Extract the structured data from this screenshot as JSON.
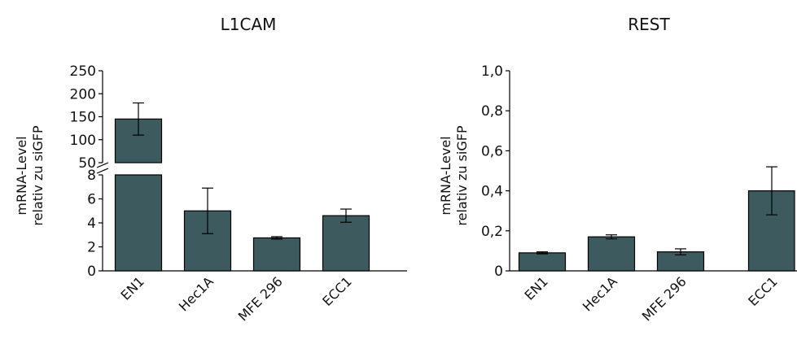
{
  "chart_data": [
    {
      "type": "bar",
      "title": "L1CAM",
      "ylabel_lines": [
        "mRNA-Level",
        "relativ zu siGFP"
      ],
      "categories": [
        "EN1",
        "Hec1A",
        "MFE 296",
        "ECC1"
      ],
      "values": [
        145,
        5.0,
        2.75,
        4.6
      ],
      "errors": [
        35,
        1.9,
        0.1,
        0.55
      ],
      "broken_axis": true,
      "lower_ylim": [
        0,
        8
      ],
      "upper_ylim": [
        50,
        250
      ],
      "lower_ticks": [
        "0",
        "2",
        "4",
        "6",
        "8"
      ],
      "upper_ticks": [
        "50",
        "100",
        "150",
        "200",
        "250"
      ],
      "bar_color": "#3d5a5e"
    },
    {
      "type": "bar",
      "title": "REST",
      "ylabel_lines": [
        "mRNA-Level",
        "relativ zu siGFP"
      ],
      "categories": [
        "EN1",
        "Hec1A",
        "MFE 296",
        "ECC1"
      ],
      "values": [
        0.09,
        0.17,
        0.095,
        0.4
      ],
      "errors": [
        0.005,
        0.01,
        0.015,
        0.12
      ],
      "ylim": [
        0,
        1.0
      ],
      "ticks": [
        "0",
        "0,2",
        "0,4",
        "0,6",
        "0,8",
        "1,0"
      ],
      "bar_color": "#3d5a5e"
    }
  ]
}
